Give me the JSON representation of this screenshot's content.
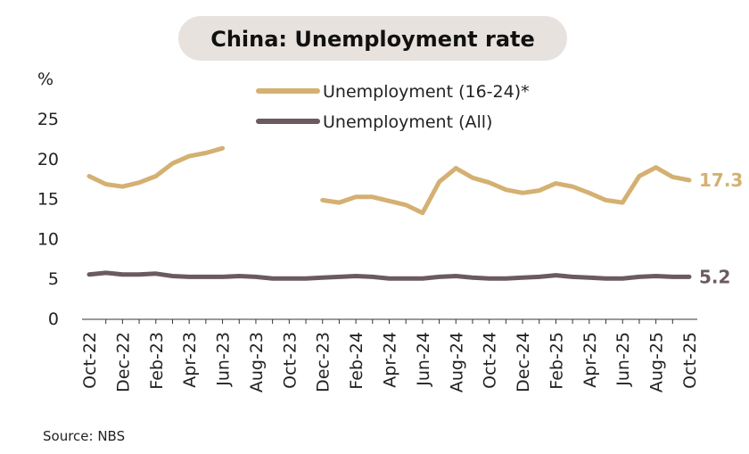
{
  "chart_data": {
    "type": "line",
    "title": "China: Unemployment rate",
    "ylabel": "%",
    "ylim": [
      0,
      25
    ],
    "yticks": [
      0,
      5,
      10,
      15,
      20,
      25
    ],
    "x": [
      "Oct-22",
      "Nov-22",
      "Dec-22",
      "Jan-23",
      "Feb-23",
      "Mar-23",
      "Apr-23",
      "May-23",
      "Jun-23",
      "Jul-23",
      "Aug-23",
      "Sep-23",
      "Oct-23",
      "Nov-23",
      "Dec-23",
      "Jan-24",
      "Feb-24",
      "Mar-24",
      "Apr-24",
      "May-24",
      "Jun-24",
      "Jul-24",
      "Aug-24",
      "Sep-24",
      "Oct-24",
      "Nov-24",
      "Dec-24",
      "Jan-25",
      "Feb-25",
      "Mar-25",
      "Apr-25",
      "May-25",
      "Jun-25",
      "Jul-25",
      "Aug-25",
      "Sep-25",
      "Oct-25"
    ],
    "xtick_labels": [
      "Oct-22",
      "Dec-22",
      "Feb-23",
      "Apr-23",
      "Jun-23",
      "Aug-23",
      "Oct-23",
      "Dec-23",
      "Feb-24",
      "Apr-24",
      "Jun-24",
      "Aug-24",
      "Oct-24",
      "Dec-24",
      "Feb-25",
      "Apr-25",
      "Jun-25",
      "Aug-25",
      "Oct-25"
    ],
    "series": [
      {
        "name": "Unemployment (16-24)*",
        "color": "#d4b072",
        "end_label": "17.3",
        "values": [
          17.8,
          16.8,
          16.5,
          17.0,
          17.8,
          19.4,
          20.3,
          20.7,
          21.3,
          null,
          null,
          null,
          null,
          null,
          14.8,
          14.5,
          15.2,
          15.2,
          14.7,
          14.2,
          13.2,
          17.1,
          18.8,
          17.6,
          17.0,
          16.1,
          15.7,
          16.0,
          16.9,
          16.5,
          15.7,
          14.8,
          14.5,
          17.8,
          18.9,
          17.7,
          17.3
        ]
      },
      {
        "name": "Unemployment (All)",
        "color": "#6b5b5e",
        "end_label": "5.2",
        "values": [
          5.5,
          5.7,
          5.5,
          5.5,
          5.6,
          5.3,
          5.2,
          5.2,
          5.2,
          5.3,
          5.2,
          5.0,
          5.0,
          5.0,
          5.1,
          5.2,
          5.3,
          5.2,
          5.0,
          5.0,
          5.0,
          5.2,
          5.3,
          5.1,
          5.0,
          5.0,
          5.1,
          5.2,
          5.4,
          5.2,
          5.1,
          5.0,
          5.0,
          5.2,
          5.3,
          5.2,
          5.2
        ]
      }
    ],
    "legend": "top-center",
    "grid": false,
    "source": "Source: NBS"
  }
}
